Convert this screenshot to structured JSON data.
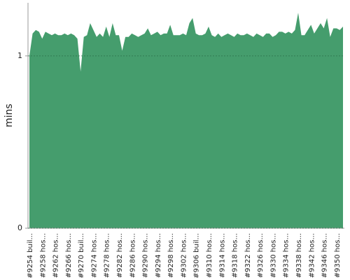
{
  "chart_data": {
    "type": "area",
    "ylabel": "mins",
    "categories": [
      "#9254 buil...",
      null,
      null,
      null,
      "#9258 hos...",
      null,
      null,
      null,
      "#9262 hos...",
      null,
      null,
      null,
      "#9266 hos...",
      null,
      null,
      null,
      "#9270 buil...",
      null,
      null,
      null,
      "#9274 hos...",
      null,
      null,
      null,
      "#9278 hos...",
      null,
      null,
      null,
      "#9282 hos...",
      null,
      null,
      null,
      "#9286 hos...",
      null,
      null,
      null,
      "#9290 hos...",
      null,
      null,
      null,
      "#9294 hos...",
      null,
      null,
      null,
      "#9298 hos...",
      null,
      null,
      null,
      "#9302 hos...",
      null,
      null,
      null,
      "#9306 buil...",
      null,
      null,
      null,
      "#9310 hos...",
      null,
      null,
      null,
      "#9314 hos...",
      null,
      null,
      null,
      "#9318 hos...",
      null,
      null,
      null,
      "#9322 hos...",
      null,
      null,
      null,
      "#9326 hos...",
      null,
      null,
      null,
      "#9330 hos...",
      null,
      null,
      null,
      "#9334 hos...",
      null,
      null,
      null,
      "#9338 hos...",
      null,
      null,
      null,
      "#9342 hos...",
      null,
      null,
      null,
      "#9346 hos...",
      null,
      null,
      null,
      "#9350 hos...",
      null,
      null
    ],
    "values": [
      1.0,
      1.13,
      1.15,
      1.14,
      1.1,
      1.14,
      1.13,
      1.12,
      1.13,
      1.12,
      1.12,
      1.13,
      1.12,
      1.13,
      1.12,
      1.1,
      0.91,
      1.11,
      1.12,
      1.19,
      1.15,
      1.11,
      1.13,
      1.11,
      1.17,
      1.11,
      1.19,
      1.12,
      1.12,
      1.03,
      1.11,
      1.11,
      1.13,
      1.12,
      1.11,
      1.12,
      1.13,
      1.16,
      1.12,
      1.13,
      1.14,
      1.12,
      1.13,
      1.13,
      1.18,
      1.12,
      1.12,
      1.12,
      1.13,
      1.12,
      1.19,
      1.22,
      1.13,
      1.12,
      1.12,
      1.13,
      1.17,
      1.12,
      1.11,
      1.13,
      1.11,
      1.12,
      1.13,
      1.12,
      1.11,
      1.13,
      1.12,
      1.12,
      1.13,
      1.12,
      1.11,
      1.13,
      1.12,
      1.11,
      1.13,
      1.13,
      1.11,
      1.12,
      1.14,
      1.14,
      1.13,
      1.14,
      1.13,
      1.15,
      1.25,
      1.12,
      1.12,
      1.15,
      1.18,
      1.13,
      1.16,
      1.19,
      1.16,
      1.22,
      1.11,
      1.16,
      1.16,
      1.15,
      1.17
    ],
    "color": "#459d6d",
    "ylim": [
      0,
      1.3
    ],
    "yticks": [
      0,
      1
    ],
    "grid": true
  }
}
